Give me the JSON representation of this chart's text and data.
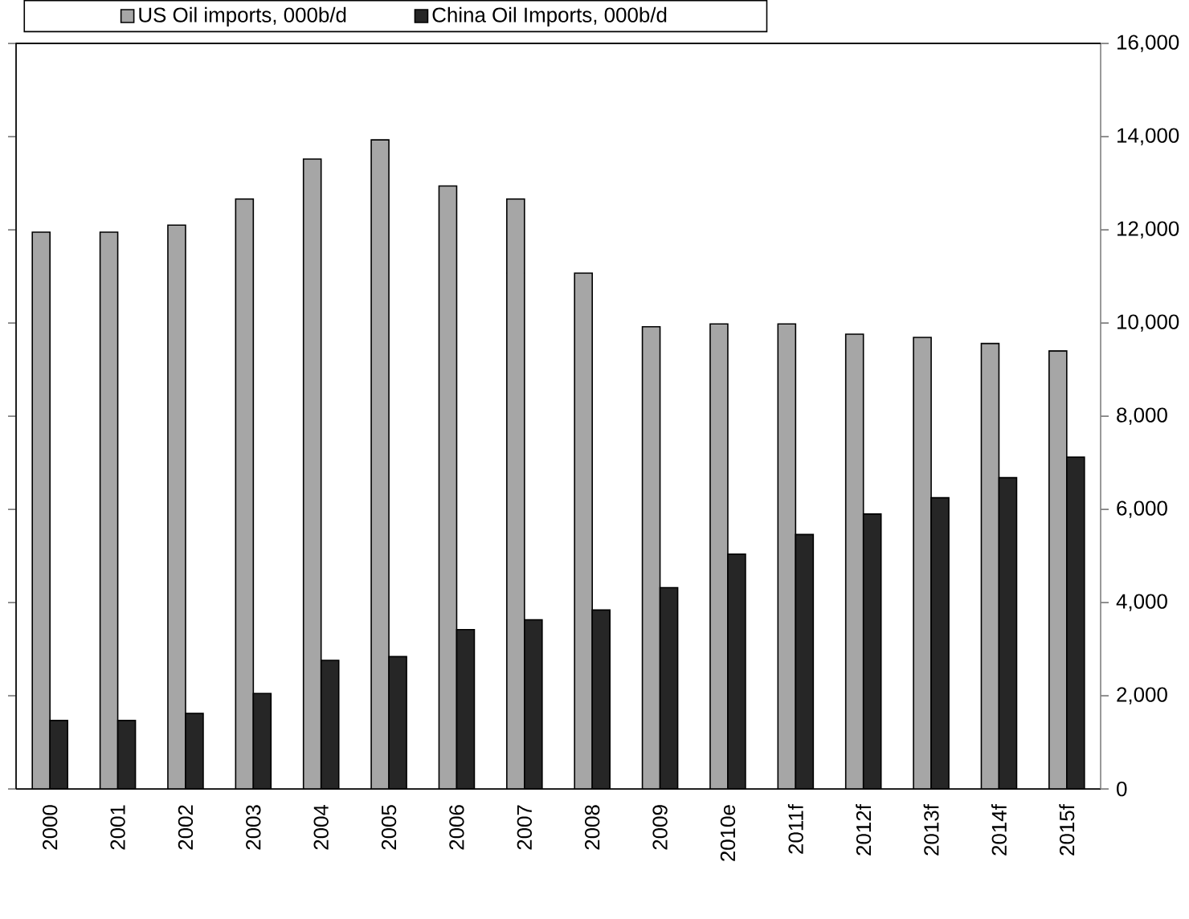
{
  "chart_data": {
    "type": "bar",
    "categories": [
      "2000",
      "2001",
      "2002",
      "2003",
      "2004",
      "2005",
      "2006",
      "2007",
      "2008",
      "2009",
      "2010e",
      "2011f",
      "2012f",
      "2013f",
      "2014f",
      "2015f"
    ],
    "series": [
      {
        "name": "US Oil imports, 000b/d",
        "color": "#a6a6a6",
        "values": [
          11950,
          11950,
          12100,
          12660,
          13520,
          13930,
          12940,
          12660,
          11070,
          9920,
          9980,
          9980,
          9760,
          9690,
          9560,
          9400
        ]
      },
      {
        "name": "China Oil Imports, 000b/d",
        "color": "#262626",
        "values": [
          1470,
          1470,
          1620,
          2050,
          2760,
          2840,
          3420,
          3630,
          3840,
          4320,
          5040,
          5460,
          5900,
          6250,
          6680,
          7120
        ]
      }
    ],
    "ylim": [
      0,
      16000
    ],
    "yticks": [
      0,
      {
        "value": 2000,
        "label": "2,000"
      },
      {
        "value": 4000,
        "label": "4,000"
      },
      {
        "value": 6000,
        "label": "6,000"
      },
      {
        "value": 8000,
        "label": "8,000"
      },
      {
        "value": 10000,
        "label": "10,000"
      },
      {
        "value": 12000,
        "label": "12,000"
      },
      {
        "value": 14000,
        "label": "14,000"
      },
      {
        "value": 16000,
        "label": "16,000"
      }
    ],
    "grid": false,
    "legend": "top"
  }
}
